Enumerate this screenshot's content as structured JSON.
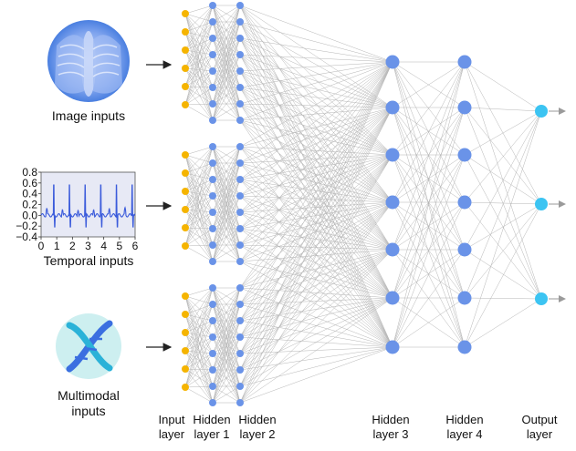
{
  "inputs": {
    "image_caption": "Image inputs",
    "temporal_caption": "Temporal inputs",
    "multimodal_caption_line1": "Multimodal",
    "multimodal_caption_line2": "inputs"
  },
  "temporal_plot": {
    "y_ticks": [
      "0.8",
      "0.6",
      "0.4",
      "0.2",
      "0.0",
      "−0.2",
      "−0.4"
    ],
    "x_ticks": [
      "0",
      "1",
      "2",
      "3",
      "4",
      "5",
      "6"
    ],
    "line_color": "#3b5bdb"
  },
  "layers": {
    "input": [
      "Input",
      "layer"
    ],
    "hidden1": [
      "Hidden",
      "layer 1"
    ],
    "hidden2": [
      "Hidden",
      "layer 2"
    ],
    "hidden3": [
      "Hidden",
      "layer 3"
    ],
    "hidden4": [
      "Hidden",
      "layer 4"
    ],
    "output": [
      "Output",
      "layer"
    ]
  },
  "colors": {
    "input_node": "#f5b400",
    "hidden_node": "#6a93e8",
    "output_node": "#3cc4f2",
    "edge": "#b5b5b5",
    "arrow": "#222222",
    "xray": "#4a7fe0",
    "dna_bg": "#cdeff0",
    "dna_strand_a": "#3b6fe0",
    "dna_strand_b": "#2bb2d8"
  },
  "icons": {
    "image": "chest-xray-icon",
    "temporal": "time-series-plot-icon",
    "multimodal": "dna-helix-icon"
  }
}
